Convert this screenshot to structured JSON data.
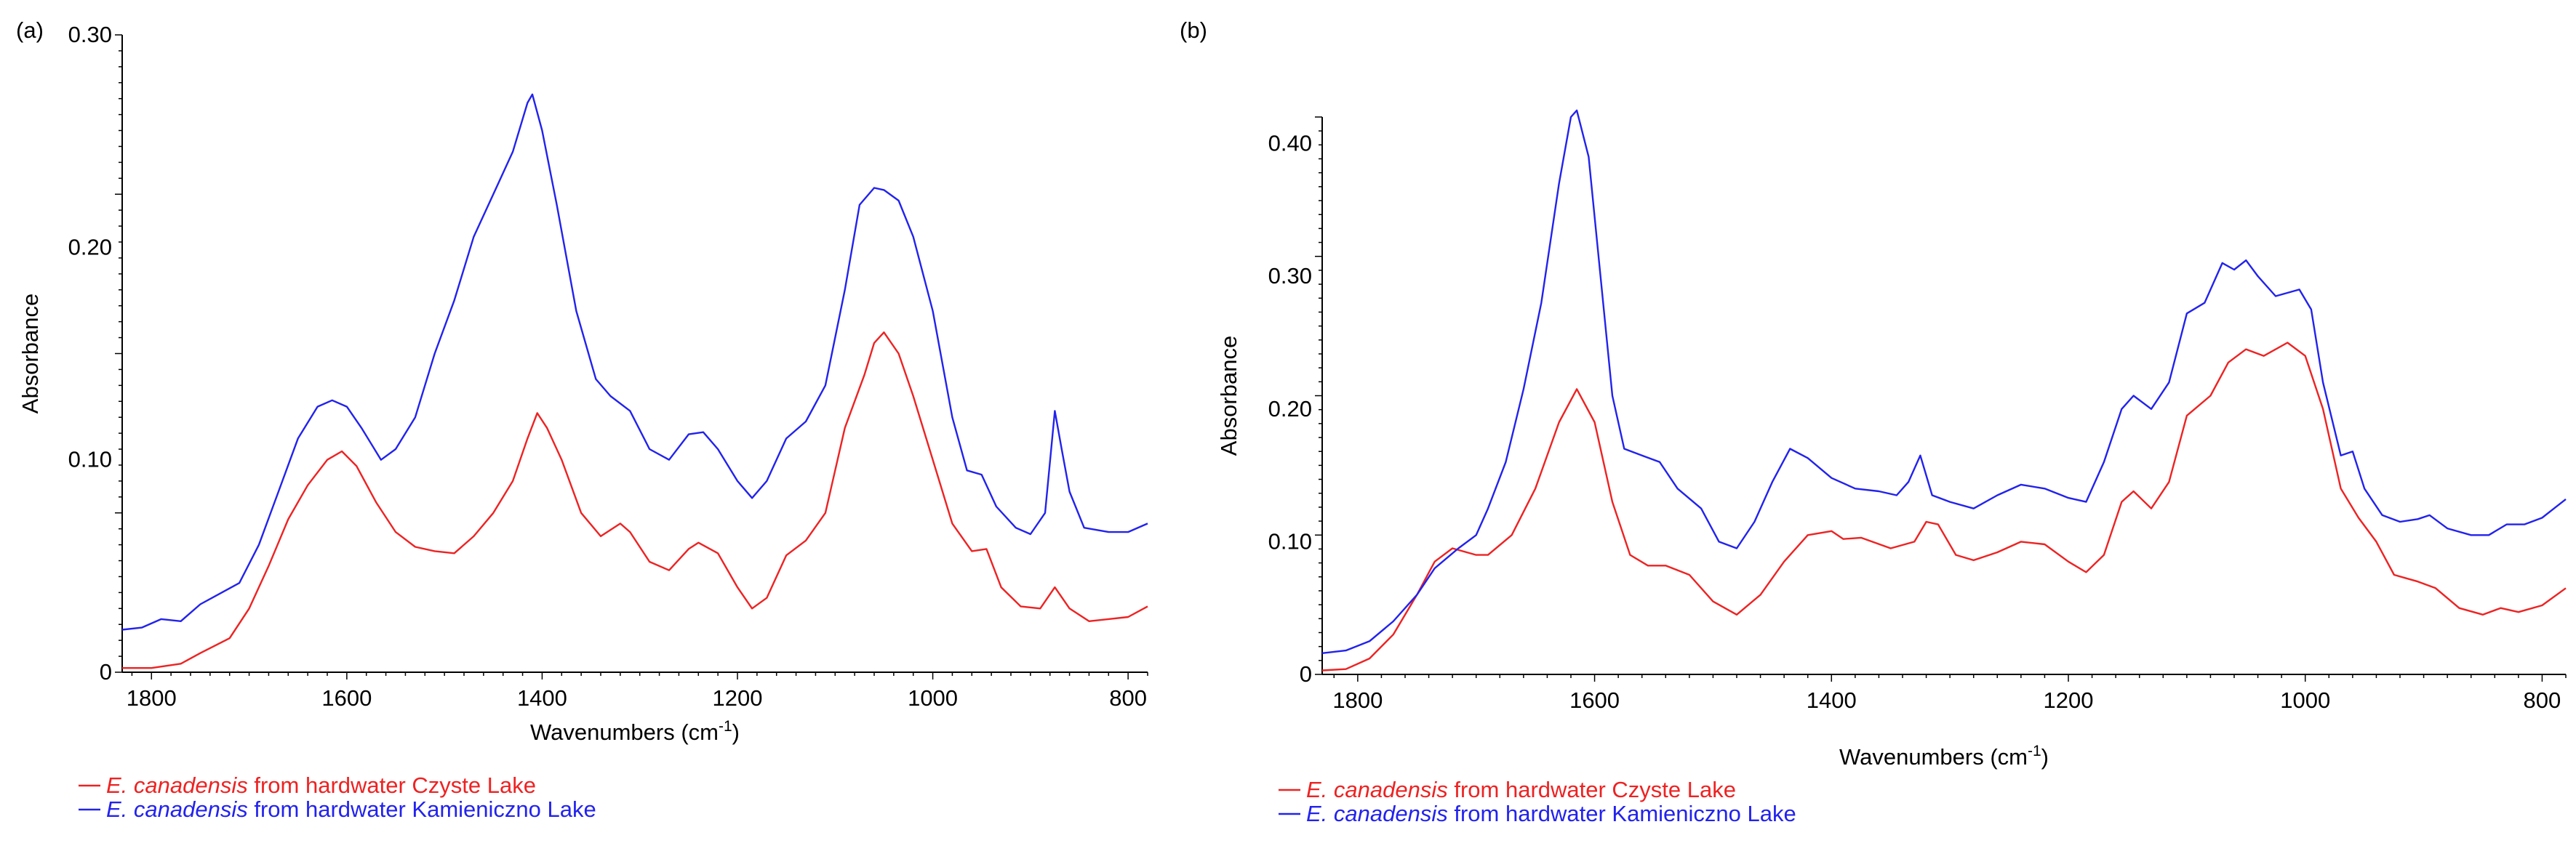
{
  "colors": {
    "series_1": "#ee2222",
    "series_2": "#2222ee",
    "axis": "#000000",
    "text": "#000000"
  },
  "chart_data": [
    {
      "panel_label": "(a)",
      "type": "line",
      "xlabel_prefix": "Wavenumbers (cm",
      "xlabel_sup": "-1",
      "xlabel_suffix": ")",
      "ylabel": "Absorbance",
      "xlim": [
        1830,
        780
      ],
      "ylim": [
        0,
        0.3
      ],
      "x_reversed": true,
      "xticks": [
        1800,
        1600,
        1400,
        1200,
        1000,
        800
      ],
      "yticks": [
        0,
        0.1,
        0.2,
        0.3
      ],
      "ytick_labels": [
        "0",
        "0.10",
        "0.20",
        "0.30"
      ],
      "grid": false,
      "legend_position": "below",
      "series": [
        {
          "name_italic": "E. canadensis",
          "name_rest": " from hardwater Czyste Lake",
          "color": "#ee2222",
          "points": [
            [
              1830,
              0.002
            ],
            [
              1800,
              0.002
            ],
            [
              1770,
              0.004
            ],
            [
              1750,
              0.009
            ],
            [
              1720,
              0.016
            ],
            [
              1700,
              0.03
            ],
            [
              1680,
              0.05
            ],
            [
              1660,
              0.072
            ],
            [
              1640,
              0.088
            ],
            [
              1620,
              0.1
            ],
            [
              1605,
              0.104
            ],
            [
              1590,
              0.097
            ],
            [
              1570,
              0.08
            ],
            [
              1550,
              0.066
            ],
            [
              1530,
              0.059
            ],
            [
              1510,
              0.057
            ],
            [
              1490,
              0.056
            ],
            [
              1470,
              0.064
            ],
            [
              1450,
              0.075
            ],
            [
              1430,
              0.09
            ],
            [
              1415,
              0.11
            ],
            [
              1405,
              0.122
            ],
            [
              1395,
              0.115
            ],
            [
              1380,
              0.1
            ],
            [
              1360,
              0.075
            ],
            [
              1340,
              0.064
            ],
            [
              1320,
              0.07
            ],
            [
              1310,
              0.066
            ],
            [
              1290,
              0.052
            ],
            [
              1270,
              0.048
            ],
            [
              1250,
              0.058
            ],
            [
              1240,
              0.061
            ],
            [
              1220,
              0.056
            ],
            [
              1200,
              0.04
            ],
            [
              1185,
              0.03
            ],
            [
              1170,
              0.035
            ],
            [
              1150,
              0.055
            ],
            [
              1130,
              0.062
            ],
            [
              1110,
              0.075
            ],
            [
              1090,
              0.115
            ],
            [
              1070,
              0.14
            ],
            [
              1060,
              0.155
            ],
            [
              1050,
              0.16
            ],
            [
              1035,
              0.15
            ],
            [
              1020,
              0.13
            ],
            [
              1000,
              0.1
            ],
            [
              980,
              0.07
            ],
            [
              960,
              0.057
            ],
            [
              945,
              0.058
            ],
            [
              930,
              0.04
            ],
            [
              910,
              0.031
            ],
            [
              890,
              0.03
            ],
            [
              875,
              0.04
            ],
            [
              860,
              0.03
            ],
            [
              840,
              0.024
            ],
            [
              820,
              0.025
            ],
            [
              800,
              0.026
            ],
            [
              780,
              0.031
            ]
          ]
        },
        {
          "name_italic": "E. canadensis",
          "name_rest": " from hardwater Kamieniczno Lake",
          "color": "#2222ee",
          "points": [
            [
              1830,
              0.02
            ],
            [
              1810,
              0.021
            ],
            [
              1790,
              0.025
            ],
            [
              1770,
              0.024
            ],
            [
              1750,
              0.032
            ],
            [
              1730,
              0.037
            ],
            [
              1710,
              0.042
            ],
            [
              1690,
              0.06
            ],
            [
              1670,
              0.085
            ],
            [
              1650,
              0.11
            ],
            [
              1630,
              0.125
            ],
            [
              1615,
              0.128
            ],
            [
              1600,
              0.125
            ],
            [
              1585,
              0.115
            ],
            [
              1565,
              0.1
            ],
            [
              1550,
              0.105
            ],
            [
              1530,
              0.12
            ],
            [
              1510,
              0.15
            ],
            [
              1490,
              0.175
            ],
            [
              1470,
              0.205
            ],
            [
              1450,
              0.225
            ],
            [
              1430,
              0.245
            ],
            [
              1415,
              0.268
            ],
            [
              1410,
              0.272
            ],
            [
              1400,
              0.255
            ],
            [
              1385,
              0.22
            ],
            [
              1365,
              0.17
            ],
            [
              1345,
              0.138
            ],
            [
              1330,
              0.13
            ],
            [
              1310,
              0.123
            ],
            [
              1290,
              0.105
            ],
            [
              1270,
              0.1
            ],
            [
              1250,
              0.112
            ],
            [
              1235,
              0.113
            ],
            [
              1220,
              0.105
            ],
            [
              1200,
              0.09
            ],
            [
              1185,
              0.082
            ],
            [
              1170,
              0.09
            ],
            [
              1150,
              0.11
            ],
            [
              1130,
              0.118
            ],
            [
              1110,
              0.135
            ],
            [
              1090,
              0.18
            ],
            [
              1075,
              0.22
            ],
            [
              1060,
              0.228
            ],
            [
              1050,
              0.227
            ],
            [
              1035,
              0.222
            ],
            [
              1020,
              0.205
            ],
            [
              1000,
              0.17
            ],
            [
              980,
              0.12
            ],
            [
              965,
              0.095
            ],
            [
              950,
              0.093
            ],
            [
              935,
              0.078
            ],
            [
              915,
              0.068
            ],
            [
              900,
              0.065
            ],
            [
              885,
              0.075
            ],
            [
              875,
              0.123
            ],
            [
              868,
              0.105
            ],
            [
              860,
              0.085
            ],
            [
              845,
              0.068
            ],
            [
              820,
              0.066
            ],
            [
              800,
              0.066
            ],
            [
              780,
              0.07
            ]
          ]
        }
      ]
    },
    {
      "panel_label": "(b)",
      "type": "line",
      "xlabel_prefix": "Wavenumbers (cm",
      "xlabel_sup": "-1",
      "xlabel_suffix": ")",
      "ylabel": "Absorbance",
      "xlim": [
        1830,
        780
      ],
      "ylim": [
        0,
        0.42
      ],
      "x_reversed": true,
      "xticks": [
        1800,
        1600,
        1400,
        1200,
        1000,
        800
      ],
      "yticks": [
        0,
        0.1,
        0.2,
        0.3,
        0.4
      ],
      "ytick_labels": [
        "0",
        "0.10",
        "0.20",
        "0.30",
        "0.40"
      ],
      "grid": false,
      "legend_position": "below",
      "series": [
        {
          "name_italic": "E. canadensis",
          "name_rest": " from hardwater Czyste Lake",
          "color": "#ee2222",
          "points": [
            [
              1830,
              0.003
            ],
            [
              1810,
              0.004
            ],
            [
              1790,
              0.012
            ],
            [
              1770,
              0.03
            ],
            [
              1750,
              0.06
            ],
            [
              1735,
              0.085
            ],
            [
              1720,
              0.095
            ],
            [
              1700,
              0.09
            ],
            [
              1690,
              0.09
            ],
            [
              1670,
              0.105
            ],
            [
              1650,
              0.14
            ],
            [
              1630,
              0.19
            ],
            [
              1615,
              0.215
            ],
            [
              1600,
              0.19
            ],
            [
              1585,
              0.13
            ],
            [
              1570,
              0.09
            ],
            [
              1555,
              0.082
            ],
            [
              1540,
              0.082
            ],
            [
              1520,
              0.075
            ],
            [
              1500,
              0.055
            ],
            [
              1480,
              0.045
            ],
            [
              1460,
              0.06
            ],
            [
              1440,
              0.085
            ],
            [
              1420,
              0.105
            ],
            [
              1400,
              0.108
            ],
            [
              1390,
              0.102
            ],
            [
              1375,
              0.103
            ],
            [
              1350,
              0.095
            ],
            [
              1330,
              0.1
            ],
            [
              1320,
              0.115
            ],
            [
              1310,
              0.113
            ],
            [
              1295,
              0.09
            ],
            [
              1280,
              0.086
            ],
            [
              1260,
              0.092
            ],
            [
              1240,
              0.1
            ],
            [
              1220,
              0.098
            ],
            [
              1200,
              0.085
            ],
            [
              1185,
              0.077
            ],
            [
              1170,
              0.09
            ],
            [
              1155,
              0.13
            ],
            [
              1145,
              0.138
            ],
            [
              1130,
              0.125
            ],
            [
              1115,
              0.145
            ],
            [
              1100,
              0.195
            ],
            [
              1080,
              0.21
            ],
            [
              1065,
              0.235
            ],
            [
              1050,
              0.245
            ],
            [
              1035,
              0.24
            ],
            [
              1015,
              0.25
            ],
            [
              1000,
              0.24
            ],
            [
              985,
              0.2
            ],
            [
              970,
              0.14
            ],
            [
              955,
              0.118
            ],
            [
              940,
              0.1
            ],
            [
              925,
              0.075
            ],
            [
              905,
              0.07
            ],
            [
              890,
              0.065
            ],
            [
              870,
              0.05
            ],
            [
              850,
              0.045
            ],
            [
              835,
              0.05
            ],
            [
              820,
              0.047
            ],
            [
              800,
              0.052
            ],
            [
              780,
              0.065
            ]
          ]
        },
        {
          "name_italic": "E. canadensis",
          "name_rest": " from hardwater Kamieniczno Lake",
          "color": "#2222ee",
          "points": [
            [
              1830,
              0.016
            ],
            [
              1810,
              0.018
            ],
            [
              1790,
              0.025
            ],
            [
              1770,
              0.04
            ],
            [
              1750,
              0.06
            ],
            [
              1735,
              0.08
            ],
            [
              1715,
              0.095
            ],
            [
              1700,
              0.105
            ],
            [
              1690,
              0.125
            ],
            [
              1675,
              0.16
            ],
            [
              1660,
              0.215
            ],
            [
              1645,
              0.28
            ],
            [
              1630,
              0.37
            ],
            [
              1620,
              0.42
            ],
            [
              1615,
              0.425
            ],
            [
              1605,
              0.39
            ],
            [
              1595,
              0.3
            ],
            [
              1585,
              0.21
            ],
            [
              1575,
              0.17
            ],
            [
              1560,
              0.165
            ],
            [
              1545,
              0.16
            ],
            [
              1530,
              0.14
            ],
            [
              1510,
              0.125
            ],
            [
              1495,
              0.1
            ],
            [
              1480,
              0.095
            ],
            [
              1465,
              0.115
            ],
            [
              1450,
              0.145
            ],
            [
              1435,
              0.17
            ],
            [
              1420,
              0.163
            ],
            [
              1400,
              0.148
            ],
            [
              1380,
              0.14
            ],
            [
              1360,
              0.138
            ],
            [
              1345,
              0.135
            ],
            [
              1335,
              0.145
            ],
            [
              1325,
              0.165
            ],
            [
              1315,
              0.135
            ],
            [
              1300,
              0.13
            ],
            [
              1280,
              0.125
            ],
            [
              1260,
              0.135
            ],
            [
              1240,
              0.143
            ],
            [
              1220,
              0.14
            ],
            [
              1200,
              0.133
            ],
            [
              1185,
              0.13
            ],
            [
              1170,
              0.16
            ],
            [
              1155,
              0.2
            ],
            [
              1145,
              0.21
            ],
            [
              1130,
              0.2
            ],
            [
              1115,
              0.22
            ],
            [
              1100,
              0.272
            ],
            [
              1085,
              0.28
            ],
            [
              1070,
              0.31
            ],
            [
              1060,
              0.305
            ],
            [
              1050,
              0.312
            ],
            [
              1040,
              0.3
            ],
            [
              1025,
              0.285
            ],
            [
              1005,
              0.29
            ],
            [
              995,
              0.275
            ],
            [
              985,
              0.22
            ],
            [
              970,
              0.165
            ],
            [
              960,
              0.168
            ],
            [
              950,
              0.14
            ],
            [
              935,
              0.12
            ],
            [
              920,
              0.115
            ],
            [
              905,
              0.117
            ],
            [
              895,
              0.12
            ],
            [
              880,
              0.11
            ],
            [
              860,
              0.105
            ],
            [
              845,
              0.105
            ],
            [
              830,
              0.113
            ],
            [
              815,
              0.113
            ],
            [
              800,
              0.118
            ],
            [
              790,
              0.125
            ],
            [
              780,
              0.132
            ]
          ]
        }
      ]
    }
  ]
}
